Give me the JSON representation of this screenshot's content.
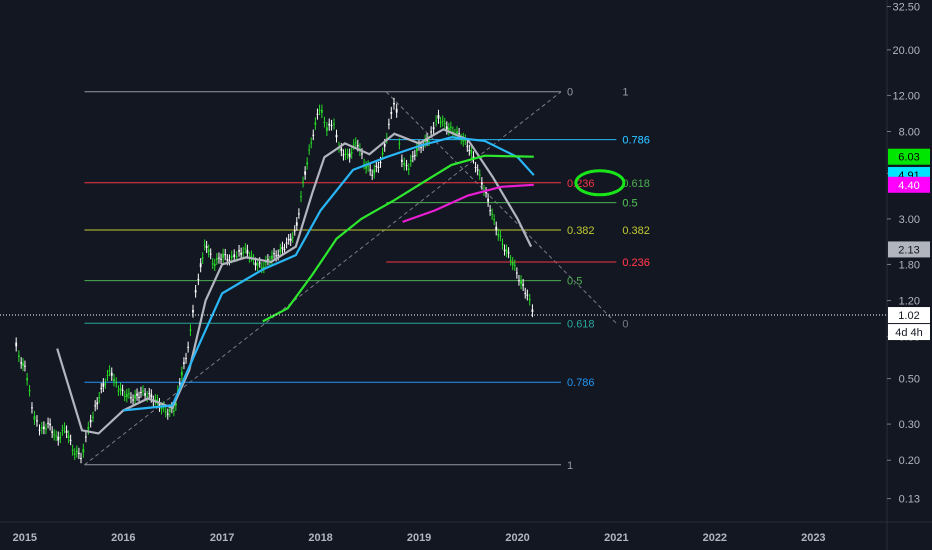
{
  "chart_data": {
    "type": "candlestick",
    "y_scale": "log",
    "ylim": [
      0.1,
      35
    ],
    "xlim": [
      "2014-10-01",
      "2023-10-01"
    ],
    "y_ticks": [
      "32.50",
      "20.00",
      "12.00",
      "8.00",
      "5.00",
      "3.00",
      "1.80",
      "1.20",
      "0.80",
      "0.50",
      "0.30",
      "0.20",
      "0.13"
    ],
    "x_ticks": [
      {
        "label": "2015",
        "date": "2015-01-01"
      },
      {
        "label": "2016",
        "date": "2016-01-01"
      },
      {
        "label": "2017",
        "date": "2017-01-01"
      },
      {
        "label": "2018",
        "date": "2018-01-01"
      },
      {
        "label": "2019",
        "date": "2019-01-01"
      },
      {
        "label": "2020",
        "date": "2020-01-01"
      },
      {
        "label": "2021",
        "date": "2021-01-01"
      },
      {
        "label": "2022",
        "date": "2022-01-01"
      },
      {
        "label": "2023",
        "date": "2023-01-01"
      }
    ],
    "price": [
      {
        "x": "2014-11-25",
        "y": 0.78
      },
      {
        "x": "2014-12-15",
        "y": 0.62
      },
      {
        "x": "2015-01-05",
        "y": 0.55
      },
      {
        "x": "2015-02-01",
        "y": 0.33
      },
      {
        "x": "2015-03-01",
        "y": 0.28
      },
      {
        "x": "2015-04-01",
        "y": 0.3
      },
      {
        "x": "2015-05-01",
        "y": 0.25
      },
      {
        "x": "2015-06-01",
        "y": 0.29
      },
      {
        "x": "2015-07-01",
        "y": 0.22
      },
      {
        "x": "2015-08-01",
        "y": 0.21
      },
      {
        "x": "2015-08-20",
        "y": 0.27
      },
      {
        "x": "2015-09-15",
        "y": 0.35
      },
      {
        "x": "2015-10-15",
        "y": 0.45
      },
      {
        "x": "2015-11-15",
        "y": 0.55
      },
      {
        "x": "2015-12-10",
        "y": 0.45
      },
      {
        "x": "2016-01-10",
        "y": 0.42
      },
      {
        "x": "2016-02-10",
        "y": 0.4
      },
      {
        "x": "2016-03-10",
        "y": 0.43
      },
      {
        "x": "2016-04-10",
        "y": 0.41
      },
      {
        "x": "2016-05-10",
        "y": 0.38
      },
      {
        "x": "2016-06-10",
        "y": 0.34
      },
      {
        "x": "2016-07-10",
        "y": 0.36
      },
      {
        "x": "2016-08-01",
        "y": 0.5
      },
      {
        "x": "2016-09-01",
        "y": 0.75
      },
      {
        "x": "2016-09-20",
        "y": 1.2
      },
      {
        "x": "2016-10-10",
        "y": 1.7
      },
      {
        "x": "2016-11-01",
        "y": 2.3
      },
      {
        "x": "2016-12-01",
        "y": 1.8
      },
      {
        "x": "2017-01-01",
        "y": 2.0
      },
      {
        "x": "2017-02-01",
        "y": 1.9
      },
      {
        "x": "2017-03-01",
        "y": 2.05
      },
      {
        "x": "2017-04-01",
        "y": 2.1
      },
      {
        "x": "2017-05-01",
        "y": 1.85
      },
      {
        "x": "2017-06-01",
        "y": 1.75
      },
      {
        "x": "2017-07-01",
        "y": 1.95
      },
      {
        "x": "2017-08-01",
        "y": 2.05
      },
      {
        "x": "2017-09-01",
        "y": 2.3
      },
      {
        "x": "2017-10-01",
        "y": 2.6
      },
      {
        "x": "2017-11-01",
        "y": 4.8
      },
      {
        "x": "2017-12-01",
        "y": 7.5
      },
      {
        "x": "2018-01-01",
        "y": 11.0
      },
      {
        "x": "2018-01-20",
        "y": 8.0
      },
      {
        "x": "2018-02-15",
        "y": 9.0
      },
      {
        "x": "2018-03-15",
        "y": 6.5
      },
      {
        "x": "2018-04-15",
        "y": 6.0
      },
      {
        "x": "2018-05-15",
        "y": 7.2
      },
      {
        "x": "2018-06-15",
        "y": 5.5
      },
      {
        "x": "2018-07-15",
        "y": 5.0
      },
      {
        "x": "2018-08-15",
        "y": 5.8
      },
      {
        "x": "2018-09-15",
        "y": 9.0
      },
      {
        "x": "2018-10-05",
        "y": 12.0
      },
      {
        "x": "2018-10-25",
        "y": 6.0
      },
      {
        "x": "2018-11-20",
        "y": 5.2
      },
      {
        "x": "2018-12-20",
        "y": 6.5
      },
      {
        "x": "2019-01-20",
        "y": 7.0
      },
      {
        "x": "2019-02-10",
        "y": 7.5
      },
      {
        "x": "2019-03-10",
        "y": 9.5
      },
      {
        "x": "2019-04-10",
        "y": 8.5
      },
      {
        "x": "2019-05-10",
        "y": 8.0
      },
      {
        "x": "2019-06-10",
        "y": 7.5
      },
      {
        "x": "2019-07-10",
        "y": 6.5
      },
      {
        "x": "2019-08-10",
        "y": 5.0
      },
      {
        "x": "2019-09-10",
        "y": 3.8
      },
      {
        "x": "2019-10-10",
        "y": 2.8
      },
      {
        "x": "2019-11-10",
        "y": 2.2
      },
      {
        "x": "2019-12-10",
        "y": 1.9
      },
      {
        "x": "2020-01-10",
        "y": 1.5
      },
      {
        "x": "2020-02-10",
        "y": 1.25
      },
      {
        "x": "2020-03-01",
        "y": 1.02
      }
    ],
    "series": [
      {
        "color": "#b2b5be",
        "points": [
          {
            "x": "2015-05-01",
            "y": 0.7
          },
          {
            "x": "2015-08-01",
            "y": 0.28
          },
          {
            "x": "2015-10-01",
            "y": 0.27
          },
          {
            "x": "2016-01-01",
            "y": 0.35
          },
          {
            "x": "2016-04-01",
            "y": 0.4
          },
          {
            "x": "2016-07-01",
            "y": 0.36
          },
          {
            "x": "2016-09-01",
            "y": 0.55
          },
          {
            "x": "2016-11-01",
            "y": 1.2
          },
          {
            "x": "2017-01-01",
            "y": 1.8
          },
          {
            "x": "2017-04-01",
            "y": 1.95
          },
          {
            "x": "2017-07-01",
            "y": 1.85
          },
          {
            "x": "2017-10-01",
            "y": 2.2
          },
          {
            "x": "2017-12-01",
            "y": 4.0
          },
          {
            "x": "2018-01-15",
            "y": 6.0
          },
          {
            "x": "2018-04-01",
            "y": 7.0
          },
          {
            "x": "2018-07-01",
            "y": 6.2
          },
          {
            "x": "2018-10-01",
            "y": 7.8
          },
          {
            "x": "2019-01-01",
            "y": 7.0
          },
          {
            "x": "2019-04-01",
            "y": 8.2
          },
          {
            "x": "2019-07-01",
            "y": 7.3
          },
          {
            "x": "2019-10-01",
            "y": 4.8
          },
          {
            "x": "2020-01-01",
            "y": 3.0
          },
          {
            "x": "2020-02-20",
            "y": 2.2
          }
        ]
      },
      {
        "color": "#29b6f6",
        "points": [
          {
            "x": "2016-01-01",
            "y": 0.35
          },
          {
            "x": "2016-04-01",
            "y": 0.36
          },
          {
            "x": "2016-07-01",
            "y": 0.37
          },
          {
            "x": "2016-10-01",
            "y": 0.7
          },
          {
            "x": "2017-01-01",
            "y": 1.3
          },
          {
            "x": "2017-06-01",
            "y": 1.7
          },
          {
            "x": "2017-10-01",
            "y": 2.0
          },
          {
            "x": "2018-01-01",
            "y": 3.3
          },
          {
            "x": "2018-05-01",
            "y": 5.2
          },
          {
            "x": "2018-09-01",
            "y": 6.0
          },
          {
            "x": "2019-01-01",
            "y": 6.8
          },
          {
            "x": "2019-05-01",
            "y": 7.5
          },
          {
            "x": "2019-09-01",
            "y": 7.2
          },
          {
            "x": "2020-01-01",
            "y": 6.0
          },
          {
            "x": "2020-03-01",
            "y": 4.9
          }
        ]
      },
      {
        "color": "#2ee82e",
        "points": [
          {
            "x": "2017-06-01",
            "y": 0.95
          },
          {
            "x": "2017-09-01",
            "y": 1.1
          },
          {
            "x": "2017-12-01",
            "y": 1.6
          },
          {
            "x": "2018-03-01",
            "y": 2.4
          },
          {
            "x": "2018-06-01",
            "y": 3.0
          },
          {
            "x": "2018-10-01",
            "y": 3.7
          },
          {
            "x": "2019-01-01",
            "y": 4.4
          },
          {
            "x": "2019-05-01",
            "y": 5.5
          },
          {
            "x": "2019-09-01",
            "y": 6.1
          },
          {
            "x": "2020-01-01",
            "y": 6.05
          },
          {
            "x": "2020-03-01",
            "y": 6.03
          }
        ]
      },
      {
        "color": "#e91ed4",
        "points": [
          {
            "x": "2018-11-01",
            "y": 2.9
          },
          {
            "x": "2019-03-01",
            "y": 3.3
          },
          {
            "x": "2019-07-01",
            "y": 3.9
          },
          {
            "x": "2019-11-01",
            "y": 4.3
          },
          {
            "x": "2020-03-01",
            "y": 4.4
          }
        ]
      }
    ],
    "fib_levels": [
      {
        "label": "0",
        "value": 12.5,
        "x1": "2015-08-10",
        "x2": "2020-06-10",
        "color": "#9598a1",
        "right_label": "1",
        "right_x": "2021-01-01",
        "right_color": "#9598a1"
      },
      {
        "label": "0.786",
        "value": 7.3,
        "x1": "2018-09-01",
        "x2": "2021-01-01",
        "color": "#29b6f6",
        "right_label": "0.786",
        "right_x": "2021-01-01",
        "right_color": "#29b6f6"
      },
      {
        "label": "0.236",
        "value": 4.5,
        "x1": "2015-08-10",
        "x2": "2020-06-10",
        "color": "#f23645",
        "right_label": "0.618",
        "right_x": "2021-01-01",
        "right_color": "#4caf50"
      },
      {
        "label": "0.5",
        "value": 3.6,
        "x1": "2018-09-01",
        "x2": "2021-01-01",
        "color": "#4caf50",
        "right_label": "0.5",
        "right_x": "2021-01-01",
        "right_color": "#4caf50"
      },
      {
        "label": "0.382",
        "value": 2.65,
        "x1": "2015-08-10",
        "x2": "2020-06-10",
        "color": "#c0ca33",
        "right_label": "0.382",
        "right_x": "2021-01-01",
        "right_color": "#c0ca33"
      },
      {
        "label": "0.236",
        "value": 1.85,
        "x1": "2018-09-01",
        "x2": "2021-01-01",
        "color": "#f23645",
        "right_label": "0.236",
        "right_x": "2021-01-01",
        "right_color": "#f23645"
      },
      {
        "label": "0.5",
        "value": 1.5,
        "x1": "2015-08-10",
        "x2": "2020-06-10",
        "color": "#4caf50",
        "right_label": "",
        "right_x": "",
        "right_color": ""
      },
      {
        "label": "0.618",
        "value": 0.93,
        "x1": "2015-08-10",
        "x2": "2020-06-10",
        "color": "#26a69a",
        "right_label": "0",
        "right_x": "2021-01-01",
        "right_color": "#787b86"
      },
      {
        "label": "0.786",
        "value": 0.48,
        "x1": "2015-08-10",
        "x2": "2020-06-10",
        "color": "#2196f3",
        "right_label": "",
        "right_x": "",
        "right_color": ""
      },
      {
        "label": "1",
        "value": 0.19,
        "x1": "2015-08-10",
        "x2": "2020-06-10",
        "color": "#9598a1",
        "right_label": "",
        "right_x": "",
        "right_color": ""
      }
    ],
    "trend_lines": [
      {
        "from": {
          "x": "2015-08-10",
          "y": 0.19
        },
        "to": {
          "x": "2020-06-10",
          "y": 12.5
        }
      },
      {
        "from": {
          "x": "2018-09-01",
          "y": 12.5
        },
        "to": {
          "x": "2021-01-01",
          "y": 0.93
        }
      }
    ],
    "current_price_line": 1.02,
    "price_labels": [
      {
        "text": "6.03",
        "value": 6.03,
        "bg": "#00e600",
        "fg": "#000000"
      },
      {
        "text": "4.91",
        "value": 4.91,
        "bg": "#00e5ff",
        "fg": "#000000"
      },
      {
        "text": "4.40",
        "value": 4.4,
        "bg": "#ff00ff",
        "fg": "#ffffff"
      },
      {
        "text": "2.13",
        "value": 2.13,
        "bg": "#b2b5be",
        "fg": "#131722"
      },
      {
        "text": "1.02",
        "value": 1.02,
        "bg": "#ffffff",
        "fg": "#131722"
      }
    ],
    "countdown": "4d 4h",
    "annotation": {
      "type": "ellipse",
      "color": "#19e619",
      "x": "2020-11-01",
      "y": 4.5
    }
  }
}
